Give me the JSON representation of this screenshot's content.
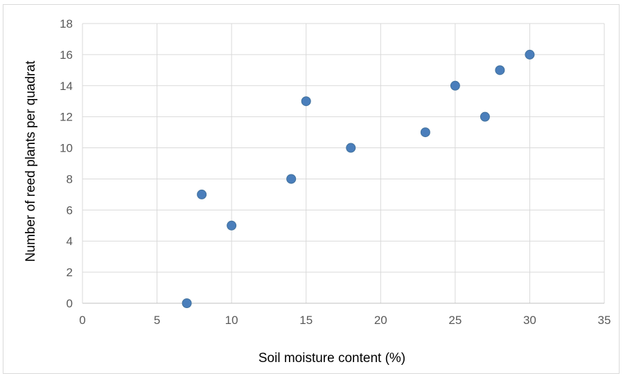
{
  "chart_data": {
    "type": "scatter",
    "title": "",
    "xlabel": "Soil moisture content (%)",
    "ylabel": "Number of reed plants per quadrat",
    "xlim": [
      0,
      35
    ],
    "ylim": [
      0,
      18
    ],
    "x_ticks": [
      "0",
      "5",
      "10",
      "15",
      "20",
      "25",
      "30",
      "35"
    ],
    "y_ticks": [
      "0",
      "2",
      "4",
      "6",
      "8",
      "10",
      "12",
      "14",
      "16",
      "18"
    ],
    "grid": true,
    "legend": "none",
    "marker_color": "#4a7ebb",
    "points": [
      {
        "x": 7,
        "y": 0
      },
      {
        "x": 8,
        "y": 7
      },
      {
        "x": 10,
        "y": 5
      },
      {
        "x": 14,
        "y": 8
      },
      {
        "x": 15,
        "y": 13
      },
      {
        "x": 18,
        "y": 10
      },
      {
        "x": 23,
        "y": 11
      },
      {
        "x": 25,
        "y": 14
      },
      {
        "x": 27,
        "y": 12
      },
      {
        "x": 28,
        "y": 15
      },
      {
        "x": 30,
        "y": 16
      }
    ]
  }
}
